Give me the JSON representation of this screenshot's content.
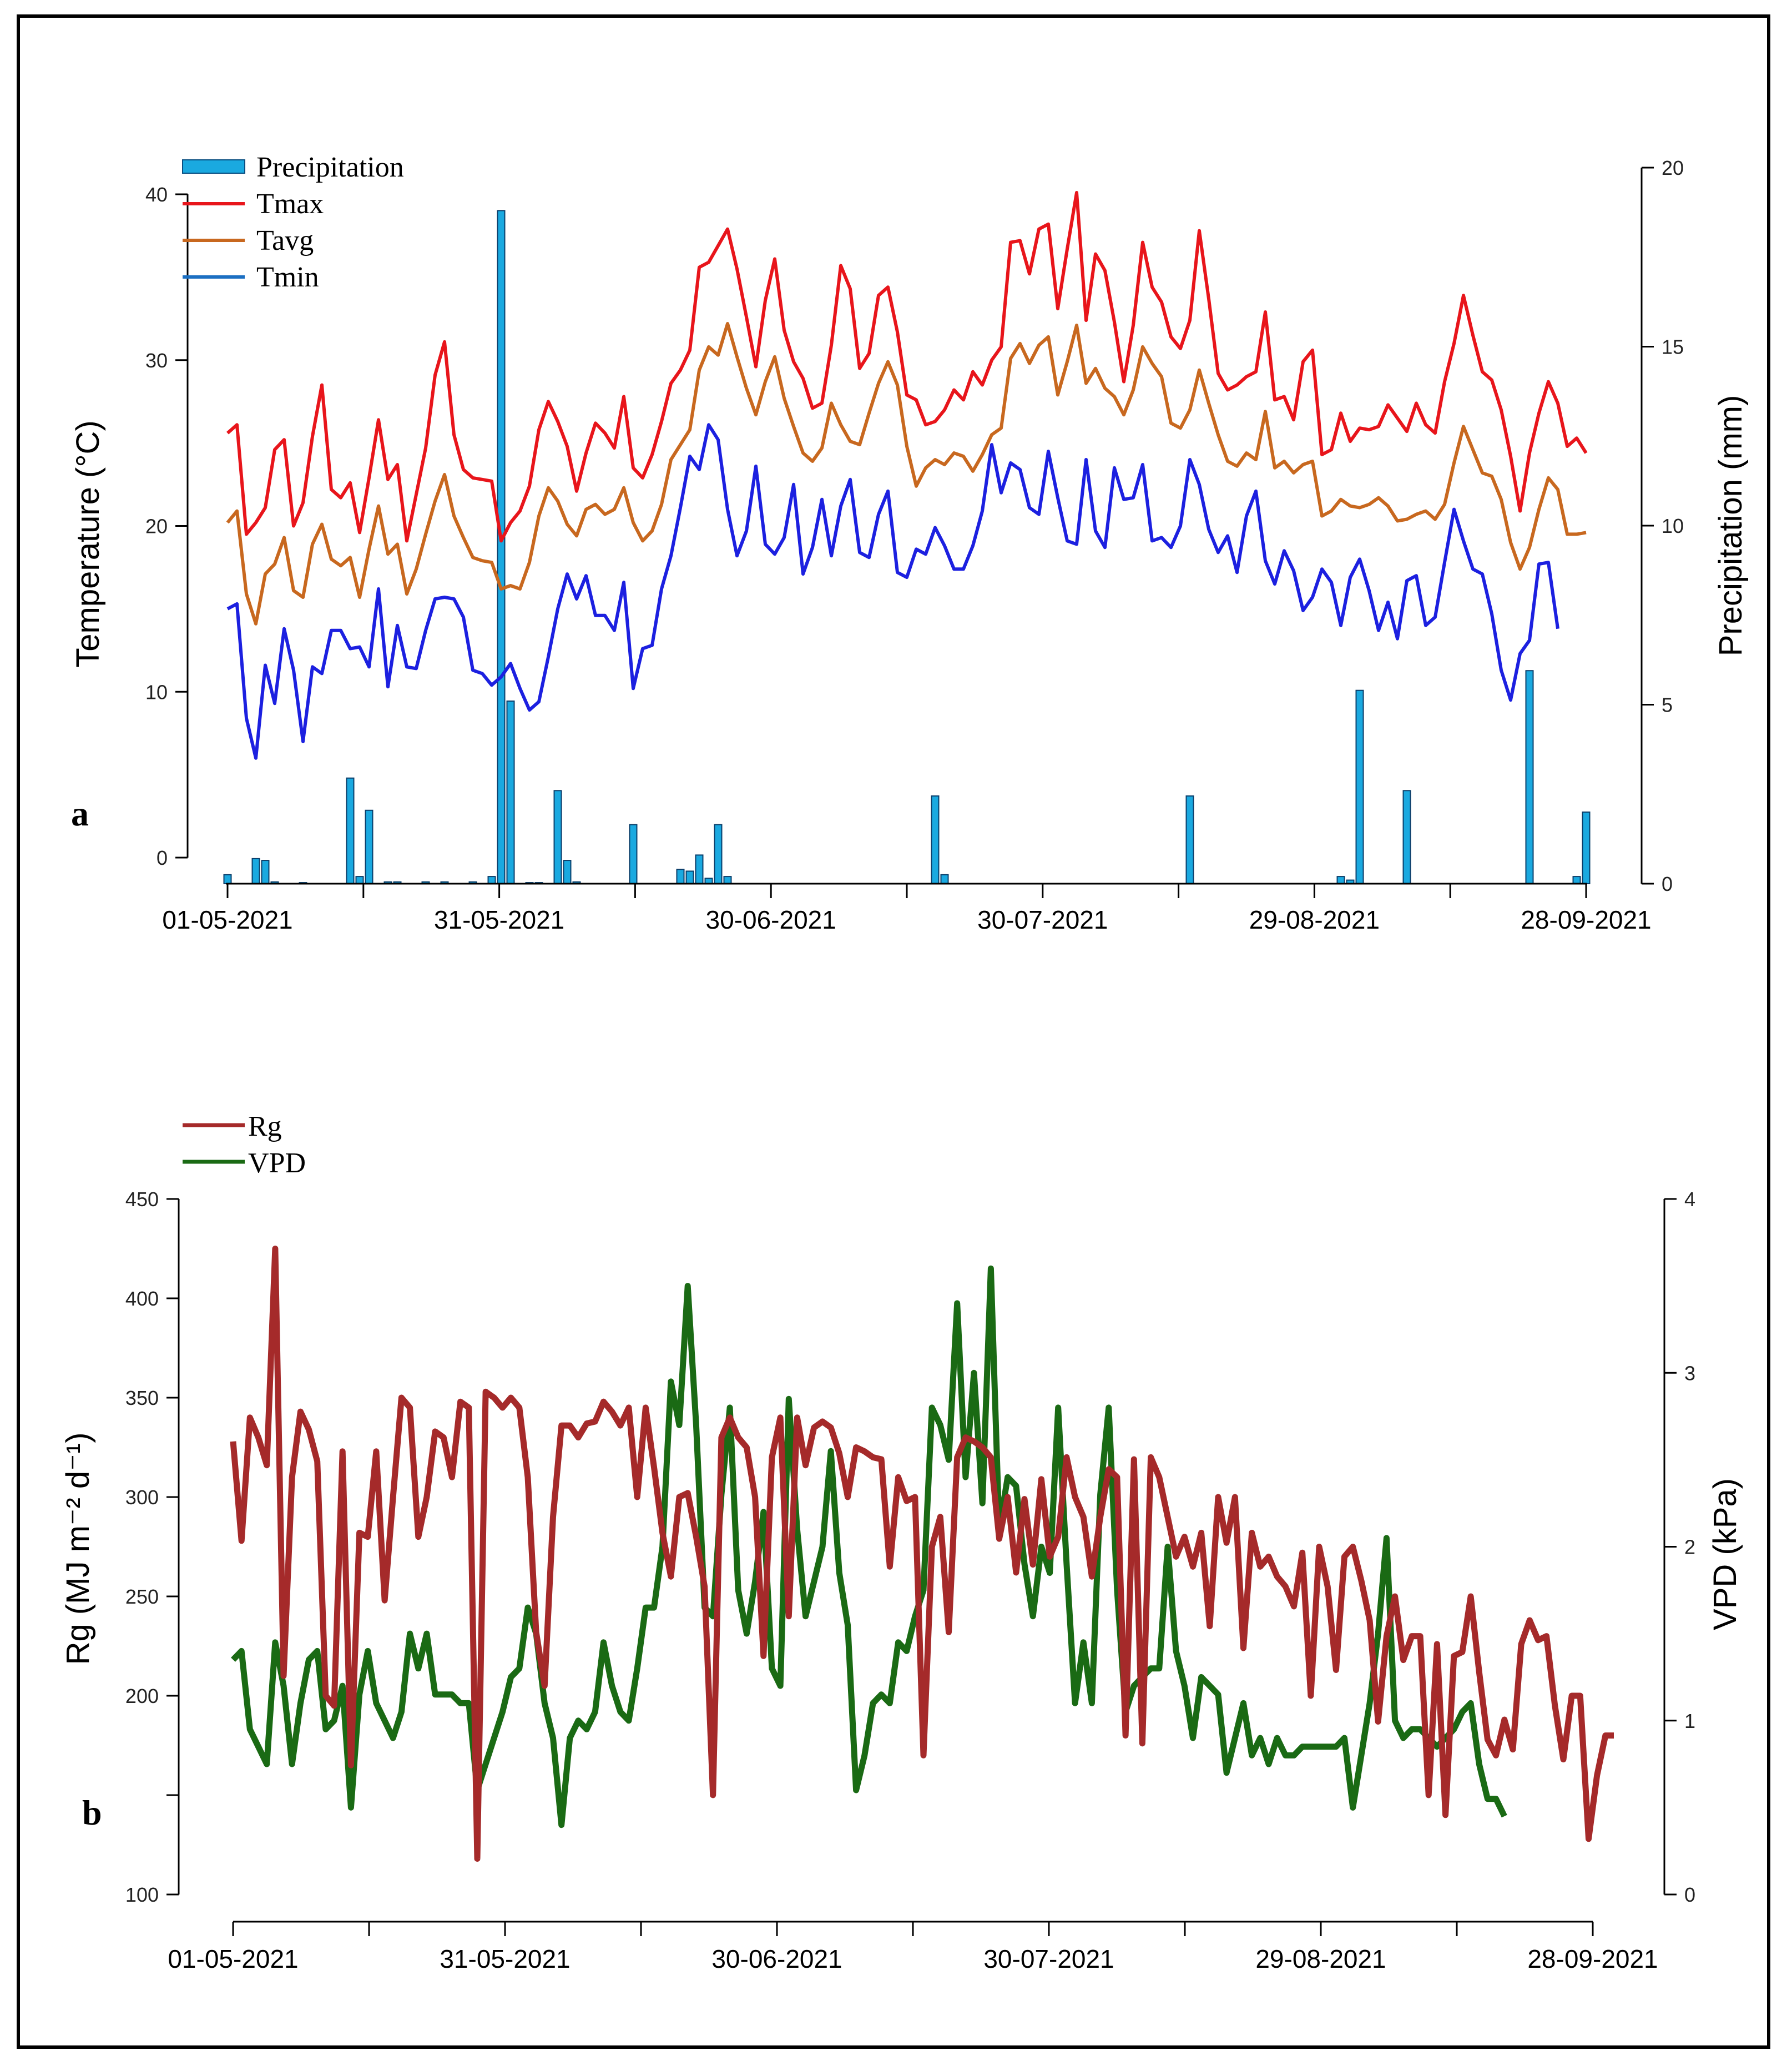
{
  "chart_data": [
    {
      "panel_label": "a",
      "type": "line+bar",
      "y_left_label": "Temperature (°C)",
      "y_right_label": "Precipitation (mm)",
      "y_left_lim": [
        0,
        40
      ],
      "y_left_ticks": [
        "0",
        "10",
        "20",
        "30",
        "40"
      ],
      "y_right_lim": [
        0,
        20
      ],
      "y_right_ticks": [
        "0",
        "5",
        "10",
        "15",
        "20"
      ],
      "x_labels": [
        "01-05-2021",
        "31-05-2021",
        "30-06-2021",
        "30-07-2021",
        "29-08-2021",
        "28-09-2021"
      ],
      "legend": [
        {
          "name": "Precipitation",
          "color": "#1aa9e0"
        },
        {
          "name": "Tmax",
          "color": "#e8151b"
        },
        {
          "name": "Tavg",
          "color": "#c8681f"
        },
        {
          "name": "Tmin",
          "color": "#1c20e0"
        }
      ],
      "series": [
        {
          "name": "Tmax",
          "values": [
            25.6,
            26.1,
            19.5,
            20.2,
            21.1,
            24.6,
            25.2,
            20.0,
            21.4,
            25.4,
            28.5,
            22.2,
            21.7,
            22.6,
            19.6,
            22.9,
            26.4,
            22.8,
            23.7,
            19.1,
            21.9,
            24.7,
            29.1,
            31.1,
            25.5,
            23.4,
            22.9,
            22.8,
            22.7,
            19.1,
            20.2,
            20.9,
            22.4,
            25.8,
            27.5,
            26.3,
            24.8,
            22.1,
            24.4,
            26.2,
            25.6,
            24.7,
            27.8,
            23.5,
            22.9,
            24.3,
            26.3,
            28.6,
            29.4,
            30.6,
            35.6,
            35.9,
            36.9,
            37.9,
            35.5,
            32.6,
            29.6,
            33.6,
            36.1,
            31.8,
            29.9,
            28.9,
            27.1,
            27.4,
            30.9,
            35.7,
            34.3,
            29.5,
            30.4,
            33.9,
            34.4,
            31.7,
            27.9,
            27.6,
            26.1,
            26.3,
            27.0,
            28.2,
            27.6,
            29.3,
            28.5,
            30.0,
            30.8,
            37.1,
            37.2,
            35.2,
            37.9,
            38.2,
            33.1,
            36.7,
            40.1,
            32.4,
            36.4,
            35.4,
            32.3,
            28.7,
            32.1,
            37.1,
            34.4,
            33.5,
            31.4,
            30.7,
            32.4,
            37.8,
            33.7,
            29.2,
            28.2,
            28.5,
            29.0,
            29.3,
            32.9,
            27.6,
            27.8,
            26.4,
            29.9,
            30.6,
            24.3,
            24.6,
            26.8,
            25.1,
            25.9,
            25.8,
            26.0,
            27.3,
            26.5,
            25.7,
            27.4,
            26.1,
            25.6,
            28.7,
            31.0,
            33.9,
            31.5,
            29.3,
            28.8,
            27.0,
            24.2,
            20.9,
            24.4,
            26.8,
            28.7,
            27.4,
            24.8,
            25.3,
            24.4
          ]
        },
        {
          "name": "Tavg",
          "values": [
            20.2,
            20.9,
            15.9,
            14.1,
            17.1,
            17.7,
            19.3,
            16.1,
            15.7,
            18.9,
            20.1,
            18.0,
            17.6,
            18.1,
            15.7,
            18.6,
            21.2,
            18.3,
            18.9,
            15.9,
            17.4,
            19.5,
            21.5,
            23.1,
            20.6,
            19.3,
            18.1,
            17.9,
            17.8,
            16.2,
            16.4,
            16.2,
            17.8,
            20.6,
            22.3,
            21.5,
            20.1,
            19.4,
            21.0,
            21.3,
            20.7,
            21.0,
            22.3,
            20.2,
            19.1,
            19.7,
            21.3,
            24.0,
            24.9,
            25.8,
            29.4,
            30.8,
            30.3,
            32.2,
            30.2,
            28.3,
            26.7,
            28.7,
            30.2,
            27.7,
            26.0,
            24.4,
            23.9,
            24.7,
            27.4,
            26.1,
            25.1,
            24.9,
            26.8,
            28.6,
            29.9,
            28.5,
            24.8,
            22.4,
            23.5,
            24.0,
            23.7,
            24.4,
            24.2,
            23.3,
            24.3,
            25.5,
            25.9,
            30.1,
            31.0,
            29.8,
            30.9,
            31.4,
            27.9,
            29.9,
            32.1,
            28.6,
            29.5,
            28.3,
            27.8,
            26.7,
            28.2,
            30.8,
            29.8,
            29.0,
            26.2,
            25.9,
            27.0,
            29.4,
            27.4,
            25.5,
            23.9,
            23.6,
            24.4,
            24.0,
            26.9,
            23.5,
            23.9,
            23.2,
            23.7,
            23.9,
            20.6,
            20.9,
            21.6,
            21.2,
            21.1,
            21.3,
            21.7,
            21.2,
            20.3,
            20.4,
            20.7,
            20.9,
            20.4,
            21.3,
            23.8,
            26.0,
            24.6,
            23.2,
            23.0,
            21.6,
            19.0,
            17.4,
            18.7,
            21.0,
            22.9,
            22.2,
            19.5,
            19.5,
            19.6
          ]
        },
        {
          "name": "Tmin",
          "values": [
            15.0,
            15.3,
            8.4,
            6.0,
            11.6,
            9.3,
            13.8,
            11.3,
            7.0,
            11.5,
            11.1,
            13.7,
            13.7,
            12.6,
            12.7,
            11.5,
            16.2,
            10.3,
            14.0,
            11.5,
            11.4,
            13.7,
            15.6,
            15.7,
            15.6,
            14.5,
            11.3,
            11.1,
            10.4,
            10.9,
            11.7,
            10.2,
            8.9,
            9.4,
            12.1,
            15.0,
            17.1,
            15.6,
            17.0,
            14.6,
            14.6,
            13.7,
            16.6,
            10.2,
            12.6,
            12.8,
            16.2,
            18.2,
            21.1,
            24.2,
            23.4,
            26.1,
            25.2,
            21.0,
            18.2,
            19.7,
            23.6,
            18.9,
            18.3,
            19.3,
            22.5,
            17.1,
            18.7,
            21.6,
            18.2,
            21.2,
            22.8,
            18.4,
            18.1,
            20.7,
            22.1,
            17.2,
            16.9,
            18.6,
            18.3,
            19.9,
            18.8,
            17.4,
            17.4,
            18.8,
            20.9,
            24.9,
            22.0,
            23.8,
            23.4,
            21.1,
            20.7,
            24.5,
            21.7,
            19.1,
            18.9,
            24.0,
            19.7,
            18.7,
            23.5,
            21.6,
            21.7,
            23.7,
            19.1,
            19.3,
            18.7,
            20.0,
            24.0,
            22.5,
            19.8,
            18.4,
            19.4,
            17.2,
            20.6,
            22.1,
            17.9,
            16.5,
            18.5,
            17.3,
            14.9,
            15.7,
            17.4,
            16.6,
            14.0,
            16.9,
            18.0,
            16.1,
            13.7,
            15.4,
            13.2,
            16.7,
            17.0,
            14.0,
            14.5,
            17.8,
            21.0,
            19.1,
            17.4,
            17.1,
            14.7,
            11.3,
            9.5,
            12.3,
            13.1,
            17.7,
            17.8,
            13.8
          ]
        },
        {
          "name": "Precipitation",
          "values": [
            0.25,
            0,
            0,
            0.7,
            0.65,
            0.05,
            0,
            0,
            0.03,
            0,
            0,
            0,
            0,
            2.95,
            0.2,
            2.05,
            0,
            0.05,
            0.05,
            0,
            0,
            0.05,
            0,
            0.05,
            0,
            0,
            0.05,
            0,
            0.2,
            18.8,
            5.1,
            0,
            0.03,
            0.03,
            0,
            2.6,
            0.65,
            0.05,
            0,
            0,
            0,
            0,
            0,
            1.65,
            0,
            0,
            0,
            0,
            0.4,
            0.35,
            0.8,
            0.15,
            1.65,
            0.2,
            0,
            0,
            0,
            0,
            0,
            0,
            0,
            0,
            0,
            0,
            0,
            0,
            0,
            0,
            0,
            0,
            0,
            0,
            0,
            0,
            0,
            2.45,
            0.25,
            0,
            0,
            0,
            0,
            0,
            0,
            0,
            0,
            0,
            0,
            0,
            0,
            0,
            0,
            0,
            0,
            0,
            0,
            0,
            0,
            0,
            0,
            0,
            0,
            0,
            2.45,
            0,
            0,
            0,
            0,
            0,
            0,
            0,
            0,
            0,
            0,
            0,
            0,
            0,
            0,
            0,
            0.2,
            0.1,
            5.4,
            0,
            0,
            0,
            0,
            2.6,
            0,
            0,
            0,
            0,
            0,
            0,
            0,
            0,
            0,
            0,
            0,
            0,
            5.95,
            0,
            0,
            0,
            0,
            0.2,
            2.0,
            0,
            0,
            0,
            0,
            0,
            0,
            0,
            0,
            0,
            0,
            0
          ]
        }
      ]
    },
    {
      "panel_label": "b",
      "type": "line",
      "y_left_label": "Rg (MJ m⁻² d⁻¹)",
      "y_right_label": "VPD (kPa)",
      "y_left_lim": [
        100,
        450
      ],
      "y_left_ticks": [
        "100",
        "150",
        "200",
        "250",
        "300",
        "350",
        "400",
        "450"
      ],
      "y_left_tick_labels_shown": [
        "100",
        "",
        "200",
        "250",
        "300",
        "350",
        "400",
        "450"
      ],
      "y_right_lim": [
        0,
        4
      ],
      "y_right_ticks": [
        "0",
        "1",
        "2",
        "3",
        "4"
      ],
      "x_labels": [
        "01-05-2021",
        "31-05-2021",
        "30-06-2021",
        "30-07-2021",
        "29-08-2021",
        "28-09-2021"
      ],
      "legend": [
        {
          "name": "Rg",
          "color": "#a52a2a"
        },
        {
          "name": "VPD",
          "color": "#1a6a14"
        }
      ],
      "series": [
        {
          "name": "Rg",
          "values": [
            328,
            278,
            340,
            330,
            316,
            425,
            210,
            310,
            343,
            334,
            318,
            200,
            195,
            323,
            165,
            282,
            280,
            323,
            248,
            300,
            350,
            345,
            280,
            300,
            333,
            330,
            310,
            348,
            345,
            118,
            353,
            350,
            345,
            350,
            345,
            310,
            232,
            205,
            290,
            336,
            336,
            330,
            337,
            338,
            348,
            343,
            336,
            345,
            300,
            345,
            315,
            282,
            260,
            300,
            302,
            280,
            255,
            150,
            330,
            340,
            330,
            325,
            300,
            220,
            320,
            340,
            240,
            340,
            316,
            335,
            338,
            335,
            322,
            300,
            325,
            323,
            320,
            319,
            265,
            310,
            298,
            300,
            170,
            275,
            290,
            232,
            320,
            330,
            328,
            325,
            320,
            279,
            300,
            262,
            299,
            266,
            309,
            270,
            280,
            320,
            300,
            290,
            260,
            290,
            314,
            310,
            180,
            319,
            176,
            320,
            310,
            290,
            270,
            280,
            265,
            282,
            235,
            300,
            277,
            300,
            224,
            282,
            265,
            270,
            260,
            255,
            245,
            272,
            200,
            275,
            255,
            213,
            270,
            275,
            258,
            238,
            187,
            230,
            250,
            218,
            230,
            230,
            150,
            226,
            140,
            220,
            222,
            250,
            212,
            178,
            170,
            188,
            173,
            226,
            238,
            228,
            230,
            195,
            168,
            200,
            200,
            128,
            160,
            180,
            180
          ]
        },
        {
          "name": "VPD",
          "values": [
            1.35,
            1.4,
            0.95,
            0.85,
            0.75,
            1.45,
            1.2,
            0.75,
            1.1,
            1.35,
            1.4,
            0.95,
            1.0,
            1.2,
            0.5,
            1.15,
            1.4,
            1.1,
            1.0,
            0.9,
            1.05,
            1.5,
            1.3,
            1.5,
            1.15,
            1.15,
            1.15,
            1.1,
            1.1,
            0.6,
            0.75,
            0.9,
            1.05,
            1.25,
            1.3,
            1.65,
            1.5,
            1.1,
            0.9,
            0.4,
            0.9,
            1.0,
            0.95,
            1.05,
            1.45,
            1.2,
            1.05,
            1.0,
            1.3,
            1.65,
            1.65,
            2.0,
            2.95,
            2.7,
            3.5,
            2.7,
            1.65,
            1.6,
            2.3,
            2.8,
            1.75,
            1.5,
            1.8,
            2.2,
            1.3,
            1.2,
            2.85,
            2.1,
            1.6,
            1.8,
            2.0,
            2.55,
            1.85,
            1.55,
            0.6,
            0.8,
            1.1,
            1.15,
            1.1,
            1.45,
            1.4,
            1.6,
            1.75,
            2.8,
            2.7,
            2.5,
            3.4,
            2.4,
            3.0,
            2.25,
            3.6,
            2.1,
            2.4,
            2.35,
            1.9,
            1.6,
            2.0,
            1.85,
            2.8,
            1.9,
            1.1,
            1.45,
            1.1,
            2.3,
            2.8,
            1.75,
            1.05,
            1.2,
            1.25,
            1.3,
            1.3,
            2.0,
            1.4,
            1.2,
            0.9,
            1.25,
            1.2,
            1.15,
            0.7,
            0.9,
            1.1,
            0.8,
            0.9,
            0.75,
            0.9,
            0.8,
            0.8,
            0.85,
            0.85,
            0.85,
            0.85,
            0.85,
            0.9,
            0.5,
            0.8,
            1.1,
            1.5,
            2.05,
            1.0,
            0.9,
            0.95,
            0.95,
            0.9,
            0.85,
            0.9,
            0.95,
            1.05,
            1.1,
            0.75,
            0.55,
            0.55,
            0.45
          ]
        }
      ]
    }
  ]
}
